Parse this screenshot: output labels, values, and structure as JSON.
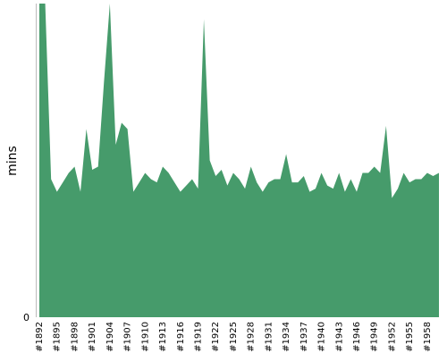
{
  "chart_data": {
    "type": "area",
    "title": "",
    "xlabel": "",
    "ylabel": "mins",
    "y_tick_labels": [
      "0"
    ],
    "grid": false,
    "legend": "none",
    "colors": {
      "area": "#469b6b",
      "axis": "#bbbbbb",
      "text": "#000000"
    },
    "x_tick_labels": [
      "#1892",
      "#1895",
      "#1898",
      "#1901",
      "#1904",
      "#1907",
      "#1910",
      "#1913",
      "#1916",
      "#1919",
      "#1922",
      "#1925",
      "#1928",
      "#1931",
      "#1934",
      "#1937",
      "#1940",
      "#1943",
      "#1946",
      "#1949",
      "#1952",
      "#1955",
      "#1958"
    ],
    "categories": [
      "#1892",
      "#1893",
      "#1894",
      "#1895",
      "#1896",
      "#1897",
      "#1898",
      "#1899",
      "#1900",
      "#1901",
      "#1902",
      "#1903",
      "#1904",
      "#1905",
      "#1906",
      "#1907",
      "#1908",
      "#1909",
      "#1910",
      "#1911",
      "#1912",
      "#1913",
      "#1914",
      "#1915",
      "#1916",
      "#1917",
      "#1918",
      "#1919",
      "#1920",
      "#1921",
      "#1922",
      "#1923",
      "#1924",
      "#1925",
      "#1926",
      "#1927",
      "#1928",
      "#1929",
      "#1930",
      "#1931",
      "#1932",
      "#1933",
      "#1934",
      "#1935",
      "#1936",
      "#1937",
      "#1938",
      "#1939",
      "#1940",
      "#1941",
      "#1942",
      "#1943",
      "#1944",
      "#1945",
      "#1946",
      "#1947",
      "#1948",
      "#1949",
      "#1950",
      "#1951",
      "#1952",
      "#1953",
      "#1954",
      "#1955",
      "#1956",
      "#1957",
      "#1958",
      "#1959",
      "#1960"
    ],
    "values": [
      100,
      100,
      44,
      40,
      43,
      46,
      48,
      40,
      60,
      47,
      48,
      75,
      100,
      55,
      62,
      60,
      40,
      43,
      46,
      44,
      43,
      48,
      46,
      43,
      40,
      42,
      44,
      41,
      95,
      50,
      45,
      47,
      42,
      46,
      44,
      41,
      48,
      43,
      40,
      43,
      44,
      44,
      52,
      43,
      43,
      45,
      40,
      41,
      46,
      42,
      41,
      46,
      40,
      44,
      40,
      46,
      46,
      48,
      46,
      61,
      38,
      41,
      46,
      43,
      44,
      44,
      46,
      45,
      46
    ],
    "ylim": [
      0,
      100
    ]
  }
}
